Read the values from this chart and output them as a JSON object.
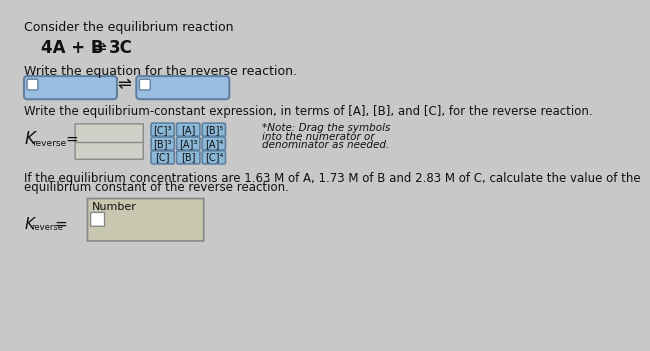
{
  "bg_color": "#c8c8c8",
  "text_color": "#111111",
  "line1": "Consider the equilibrium reaction",
  "line2": "Write the equation for the reverse reaction.",
  "line3": "Write the equilibrium-constant expression, in terms of [A], [B], and [C], for the reverse reaction.",
  "note_line1": "*Note: Drag the symbols",
  "note_line2": "into the numerator or",
  "note_line3": "denominator as needed.",
  "symbols_row1": [
    "[C]³",
    "[A]",
    "[B]⁵"
  ],
  "symbols_row2": [
    "[B]³",
    "[A]³",
    "[A]⁴"
  ],
  "symbols_row3": [
    "[C]",
    "[B]",
    "[C]⁴"
  ],
  "line4a": "If the equilibrium concentrations are 1.63 M of A, 1.73 M of B and 2.83 M of C, calculate the value of the",
  "line4b": "equilibrium constant of the reverse reaction.",
  "number_label": "Number",
  "box_fill": "#9bbde0",
  "box_border": "#6080a0",
  "symbol_box_fill": "#8cb8d8",
  "symbol_box_border": "#6080a0",
  "frac_box_fill": "#d0d0c8",
  "frac_box_border": "#888888",
  "number_box_fill": "#c8c8b0",
  "number_box_border": "#888888",
  "white": "#ffffff",
  "eq_arrow": "⇌"
}
